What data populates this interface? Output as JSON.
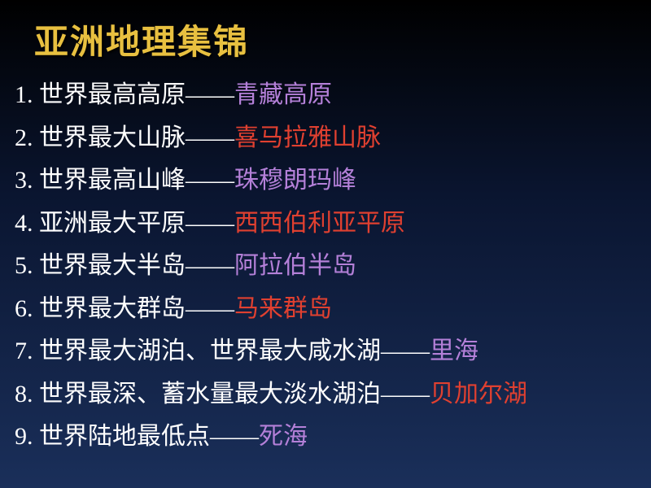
{
  "title": {
    "text": "亚洲地理集锦",
    "color": "#e8c040",
    "fontsize": 42
  },
  "body": {
    "fontsize": 30,
    "label_color": "#ffffff",
    "answer_colors": {
      "purple": "#b480d8",
      "red": "#e04030"
    }
  },
  "items": [
    {
      "num": "1.",
      "label": "世界最高高原",
      "sep": "——",
      "answer": "青藏高原",
      "color": "purple"
    },
    {
      "num": "2.",
      "label": "世界最大山脉",
      "sep": "——",
      "answer": "喜马拉雅山脉",
      "color": "red"
    },
    {
      "num": "3.",
      "label": "世界最高山峰",
      "sep": "——",
      "answer": "珠穆朗玛峰",
      "color": "purple"
    },
    {
      "num": "4.",
      "label": "亚洲最大平原",
      "sep": "——",
      "answer": "西西伯利亚平原",
      "color": "red"
    },
    {
      "num": "5.",
      "label": "世界最大半岛",
      "sep": "——",
      "answer": "阿拉伯半岛",
      "color": "purple"
    },
    {
      "num": "6.",
      "label": "世界最大群岛",
      "sep": "——",
      "answer": "马来群岛",
      "color": "red"
    },
    {
      "num": "7.",
      "label": "世界最大湖泊、世界最大咸水湖",
      "sep": "——",
      "answer": "里海",
      "color": "purple"
    },
    {
      "num": "8.",
      "label": "世界最深、蓄水量最大淡水湖泊",
      "sep": "——",
      "answer": "贝加尔湖",
      "color": "red"
    },
    {
      "num": "9.",
      "label": "世界陆地最低点",
      "sep": "——",
      "answer": "死海",
      "color": "purple"
    }
  ]
}
